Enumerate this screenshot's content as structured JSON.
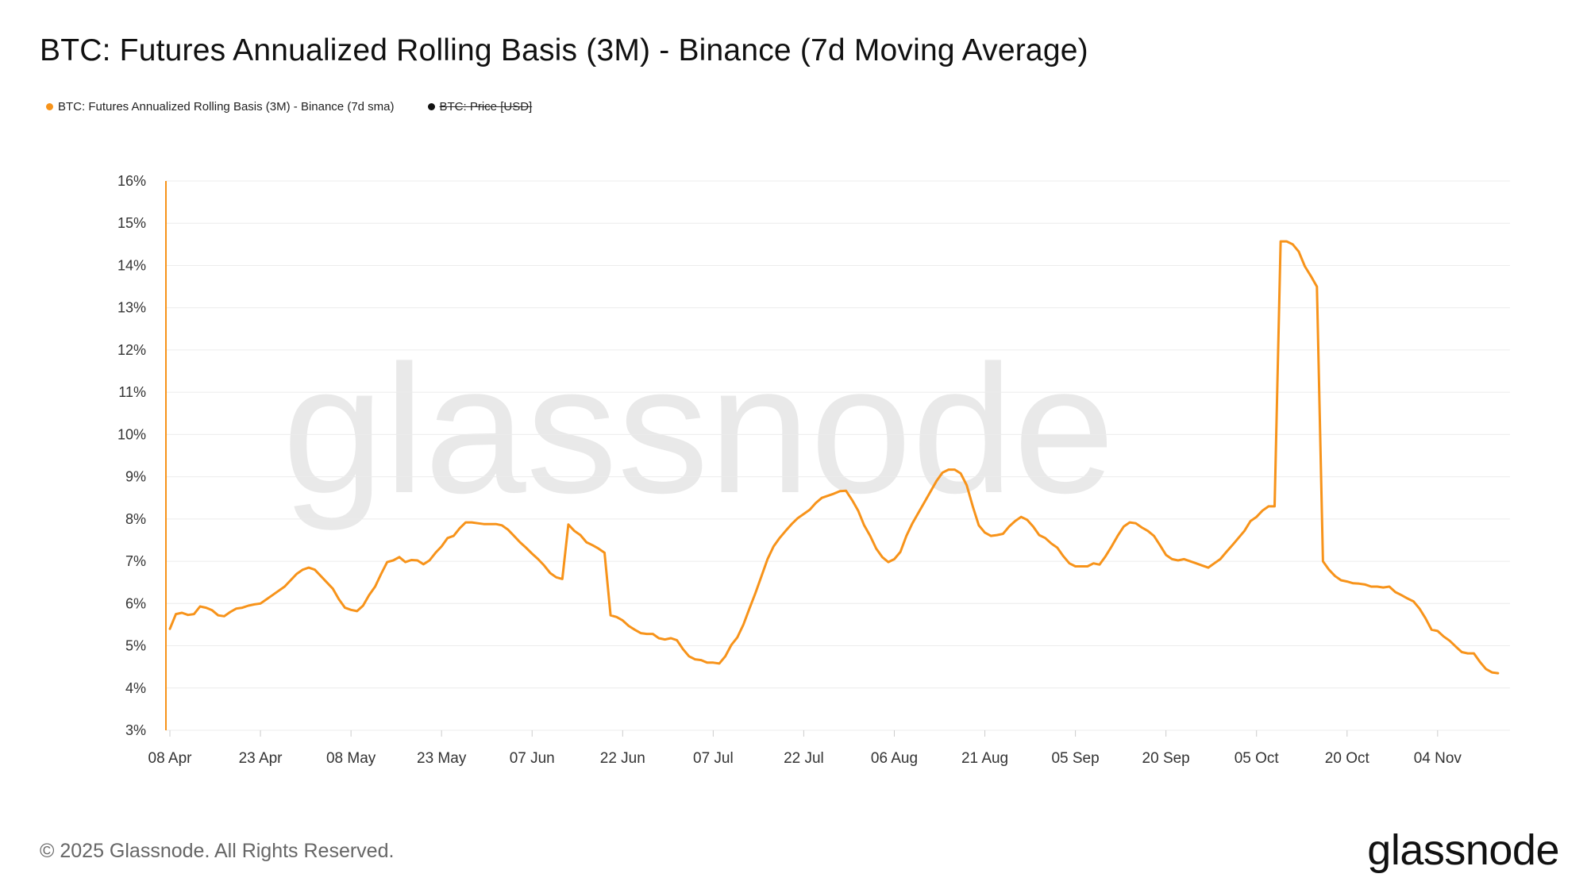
{
  "title": "BTC: Futures Annualized Rolling Basis (3M) - Binance (7d Moving Average)",
  "legend": [
    {
      "label": "BTC: Futures Annualized Rolling Basis (3M) - Binance (7d sma)",
      "color": "#f7931a",
      "enabled": true
    },
    {
      "label": "BTC: Price [USD]",
      "color": "#111111",
      "enabled": false
    }
  ],
  "watermark": "glassnode",
  "footer": {
    "copyright": "© 2025 Glassnode. All Rights Reserved.",
    "logo": "glassnode"
  },
  "colors": {
    "series": "#f7931a",
    "grid": "#ececec",
    "axis_text": "#333333",
    "watermark": "#e8e8e8"
  },
  "chart_data": {
    "type": "line",
    "title": "BTC: Futures Annualized Rolling Basis (3M) - Binance (7d Moving Average)",
    "xlabel": "",
    "ylabel": "",
    "ylim": [
      3,
      16
    ],
    "yticks": [
      3,
      4,
      5,
      6,
      7,
      8,
      9,
      10,
      11,
      12,
      13,
      14,
      15,
      16
    ],
    "ytick_labels": [
      "3%",
      "4%",
      "5%",
      "6%",
      "7%",
      "8%",
      "9%",
      "10%",
      "11%",
      "12%",
      "13%",
      "14%",
      "15%",
      "16%"
    ],
    "xlim": [
      "2025-04-08",
      "2025-11-15"
    ],
    "xticks": [
      "2025-04-08",
      "2025-04-23",
      "2025-05-08",
      "2025-05-23",
      "2025-06-07",
      "2025-06-22",
      "2025-07-07",
      "2025-07-22",
      "2025-08-06",
      "2025-08-21",
      "2025-09-05",
      "2025-09-20",
      "2025-10-05",
      "2025-10-20",
      "2025-11-04"
    ],
    "xtick_labels": [
      "08 Apr",
      "23 Apr",
      "08 May",
      "23 May",
      "07 Jun",
      "22 Jun",
      "07 Jul",
      "22 Jul",
      "06 Aug",
      "21 Aug",
      "05 Sep",
      "20 Sep",
      "05 Oct",
      "20 Oct",
      "04 Nov"
    ],
    "grid": true,
    "legend_position": "top-left",
    "series": [
      {
        "name": "BTC: Futures Annualized Rolling Basis (3M) - Binance (7d sma)",
        "color": "#f7931a",
        "points": [
          [
            "2025-04-08",
            5.4
          ],
          [
            "2025-04-09",
            5.75
          ],
          [
            "2025-04-10",
            5.78
          ],
          [
            "2025-04-11",
            5.73
          ],
          [
            "2025-04-12",
            5.75
          ],
          [
            "2025-04-13",
            5.93
          ],
          [
            "2025-04-14",
            5.9
          ],
          [
            "2025-04-15",
            5.84
          ],
          [
            "2025-04-16",
            5.72
          ],
          [
            "2025-04-17",
            5.7
          ],
          [
            "2025-04-18",
            5.8
          ],
          [
            "2025-04-19",
            5.88
          ],
          [
            "2025-04-20",
            5.9
          ],
          [
            "2025-04-21",
            5.95
          ],
          [
            "2025-04-22",
            5.98
          ],
          [
            "2025-04-23",
            6.0
          ],
          [
            "2025-04-24",
            6.1
          ],
          [
            "2025-04-25",
            6.2
          ],
          [
            "2025-04-26",
            6.3
          ],
          [
            "2025-04-27",
            6.4
          ],
          [
            "2025-04-28",
            6.55
          ],
          [
            "2025-04-29",
            6.7
          ],
          [
            "2025-04-30",
            6.8
          ],
          [
            "2025-05-01",
            6.85
          ],
          [
            "2025-05-02",
            6.8
          ],
          [
            "2025-05-03",
            6.65
          ],
          [
            "2025-05-04",
            6.5
          ],
          [
            "2025-05-05",
            6.35
          ],
          [
            "2025-05-06",
            6.1
          ],
          [
            "2025-05-07",
            5.9
          ],
          [
            "2025-05-08",
            5.85
          ],
          [
            "2025-05-09",
            5.82
          ],
          [
            "2025-05-10",
            5.95
          ],
          [
            "2025-05-11",
            6.2
          ],
          [
            "2025-05-12",
            6.4
          ],
          [
            "2025-05-13",
            6.7
          ],
          [
            "2025-05-14",
            6.98
          ],
          [
            "2025-05-15",
            7.02
          ],
          [
            "2025-05-16",
            7.1
          ],
          [
            "2025-05-17",
            6.98
          ],
          [
            "2025-05-18",
            7.03
          ],
          [
            "2025-05-19",
            7.02
          ],
          [
            "2025-05-20",
            6.93
          ],
          [
            "2025-05-21",
            7.02
          ],
          [
            "2025-05-22",
            7.2
          ],
          [
            "2025-05-23",
            7.35
          ],
          [
            "2025-05-24",
            7.55
          ],
          [
            "2025-05-25",
            7.6
          ],
          [
            "2025-05-26",
            7.78
          ],
          [
            "2025-05-27",
            7.92
          ],
          [
            "2025-05-28",
            7.92
          ],
          [
            "2025-05-29",
            7.9
          ],
          [
            "2025-05-30",
            7.88
          ],
          [
            "2025-05-31",
            7.88
          ],
          [
            "2025-06-01",
            7.88
          ],
          [
            "2025-06-02",
            7.85
          ],
          [
            "2025-06-03",
            7.75
          ],
          [
            "2025-06-04",
            7.6
          ],
          [
            "2025-06-05",
            7.45
          ],
          [
            "2025-06-06",
            7.32
          ],
          [
            "2025-06-07",
            7.18
          ],
          [
            "2025-06-08",
            7.05
          ],
          [
            "2025-06-09",
            6.9
          ],
          [
            "2025-06-10",
            6.72
          ],
          [
            "2025-06-11",
            6.62
          ],
          [
            "2025-06-12",
            6.58
          ],
          [
            "2025-06-13",
            7.87
          ],
          [
            "2025-06-14",
            7.72
          ],
          [
            "2025-06-15",
            7.62
          ],
          [
            "2025-06-16",
            7.45
          ],
          [
            "2025-06-17",
            7.38
          ],
          [
            "2025-06-18",
            7.3
          ],
          [
            "2025-06-19",
            7.2
          ],
          [
            "2025-06-20",
            5.72
          ],
          [
            "2025-06-21",
            5.68
          ],
          [
            "2025-06-22",
            5.6
          ],
          [
            "2025-06-23",
            5.47
          ],
          [
            "2025-06-24",
            5.38
          ],
          [
            "2025-06-25",
            5.3
          ],
          [
            "2025-06-26",
            5.28
          ],
          [
            "2025-06-27",
            5.28
          ],
          [
            "2025-06-28",
            5.18
          ],
          [
            "2025-06-29",
            5.15
          ],
          [
            "2025-06-30",
            5.18
          ],
          [
            "2025-07-01",
            5.13
          ],
          [
            "2025-07-02",
            4.92
          ],
          [
            "2025-07-03",
            4.75
          ],
          [
            "2025-07-04",
            4.68
          ],
          [
            "2025-07-05",
            4.66
          ],
          [
            "2025-07-06",
            4.6
          ],
          [
            "2025-07-07",
            4.6
          ],
          [
            "2025-07-08",
            4.58
          ],
          [
            "2025-07-09",
            4.75
          ],
          [
            "2025-07-10",
            5.02
          ],
          [
            "2025-07-11",
            5.2
          ],
          [
            "2025-07-12",
            5.5
          ],
          [
            "2025-07-13",
            5.88
          ],
          [
            "2025-07-14",
            6.25
          ],
          [
            "2025-07-15",
            6.65
          ],
          [
            "2025-07-16",
            7.05
          ],
          [
            "2025-07-17",
            7.35
          ],
          [
            "2025-07-18",
            7.55
          ],
          [
            "2025-07-19",
            7.72
          ],
          [
            "2025-07-20",
            7.88
          ],
          [
            "2025-07-21",
            8.02
          ],
          [
            "2025-07-22",
            8.12
          ],
          [
            "2025-07-23",
            8.22
          ],
          [
            "2025-07-24",
            8.38
          ],
          [
            "2025-07-25",
            8.5
          ],
          [
            "2025-07-26",
            8.55
          ],
          [
            "2025-07-27",
            8.6
          ],
          [
            "2025-07-28",
            8.66
          ],
          [
            "2025-07-29",
            8.67
          ],
          [
            "2025-07-30",
            8.45
          ],
          [
            "2025-07-31",
            8.2
          ],
          [
            "2025-08-01",
            7.85
          ],
          [
            "2025-08-02",
            7.6
          ],
          [
            "2025-08-03",
            7.3
          ],
          [
            "2025-08-04",
            7.1
          ],
          [
            "2025-08-05",
            6.98
          ],
          [
            "2025-08-06",
            7.05
          ],
          [
            "2025-08-07",
            7.22
          ],
          [
            "2025-08-08",
            7.6
          ],
          [
            "2025-08-09",
            7.9
          ],
          [
            "2025-08-10",
            8.15
          ],
          [
            "2025-08-11",
            8.4
          ],
          [
            "2025-08-12",
            8.65
          ],
          [
            "2025-08-13",
            8.9
          ],
          [
            "2025-08-14",
            9.1
          ],
          [
            "2025-08-15",
            9.17
          ],
          [
            "2025-08-16",
            9.17
          ],
          [
            "2025-08-17",
            9.08
          ],
          [
            "2025-08-18",
            8.8
          ],
          [
            "2025-08-19",
            8.3
          ],
          [
            "2025-08-20",
            7.85
          ],
          [
            "2025-08-21",
            7.68
          ],
          [
            "2025-08-22",
            7.6
          ],
          [
            "2025-08-23",
            7.62
          ],
          [
            "2025-08-24",
            7.65
          ],
          [
            "2025-08-25",
            7.82
          ],
          [
            "2025-08-26",
            7.95
          ],
          [
            "2025-08-27",
            8.05
          ],
          [
            "2025-08-28",
            7.98
          ],
          [
            "2025-08-29",
            7.82
          ],
          [
            "2025-08-30",
            7.62
          ],
          [
            "2025-08-31",
            7.55
          ],
          [
            "2025-09-01",
            7.42
          ],
          [
            "2025-09-02",
            7.32
          ],
          [
            "2025-09-03",
            7.12
          ],
          [
            "2025-09-04",
            6.95
          ],
          [
            "2025-09-05",
            6.88
          ],
          [
            "2025-09-06",
            6.88
          ],
          [
            "2025-09-07",
            6.88
          ],
          [
            "2025-09-08",
            6.95
          ],
          [
            "2025-09-09",
            6.92
          ],
          [
            "2025-09-10",
            7.12
          ],
          [
            "2025-09-11",
            7.35
          ],
          [
            "2025-09-12",
            7.6
          ],
          [
            "2025-09-13",
            7.82
          ],
          [
            "2025-09-14",
            7.92
          ],
          [
            "2025-09-15",
            7.9
          ],
          [
            "2025-09-16",
            7.8
          ],
          [
            "2025-09-17",
            7.72
          ],
          [
            "2025-09-18",
            7.6
          ],
          [
            "2025-09-19",
            7.38
          ],
          [
            "2025-09-20",
            7.15
          ],
          [
            "2025-09-21",
            7.05
          ],
          [
            "2025-09-22",
            7.02
          ],
          [
            "2025-09-23",
            7.05
          ],
          [
            "2025-09-24",
            7.0
          ],
          [
            "2025-09-25",
            6.95
          ],
          [
            "2025-09-26",
            6.9
          ],
          [
            "2025-09-27",
            6.85
          ],
          [
            "2025-09-28",
            6.95
          ],
          [
            "2025-09-29",
            7.05
          ],
          [
            "2025-09-30",
            7.22
          ],
          [
            "2025-10-01",
            7.38
          ],
          [
            "2025-10-02",
            7.55
          ],
          [
            "2025-10-03",
            7.72
          ],
          [
            "2025-10-04",
            7.95
          ],
          [
            "2025-10-05",
            8.05
          ],
          [
            "2025-10-06",
            8.2
          ],
          [
            "2025-10-07",
            8.3
          ],
          [
            "2025-10-08",
            8.3
          ],
          [
            "2025-10-09",
            14.57
          ],
          [
            "2025-10-10",
            14.57
          ],
          [
            "2025-10-11",
            14.5
          ],
          [
            "2025-10-12",
            14.33
          ],
          [
            "2025-10-13",
            13.98
          ],
          [
            "2025-10-14",
            13.75
          ],
          [
            "2025-10-15",
            13.5
          ],
          [
            "2025-10-16",
            7.0
          ],
          [
            "2025-10-17",
            6.8
          ],
          [
            "2025-10-18",
            6.65
          ],
          [
            "2025-10-19",
            6.55
          ],
          [
            "2025-10-20",
            6.52
          ],
          [
            "2025-10-21",
            6.48
          ],
          [
            "2025-10-22",
            6.47
          ],
          [
            "2025-10-23",
            6.45
          ],
          [
            "2025-10-24",
            6.4
          ],
          [
            "2025-10-25",
            6.4
          ],
          [
            "2025-10-26",
            6.38
          ],
          [
            "2025-10-27",
            6.4
          ],
          [
            "2025-10-28",
            6.27
          ],
          [
            "2025-10-29",
            6.2
          ],
          [
            "2025-10-30",
            6.12
          ],
          [
            "2025-10-31",
            6.05
          ],
          [
            "2025-11-01",
            5.88
          ],
          [
            "2025-11-02",
            5.65
          ],
          [
            "2025-11-03",
            5.38
          ],
          [
            "2025-11-04",
            5.35
          ],
          [
            "2025-11-05",
            5.22
          ],
          [
            "2025-11-06",
            5.12
          ],
          [
            "2025-11-07",
            4.98
          ],
          [
            "2025-11-08",
            4.85
          ],
          [
            "2025-11-09",
            4.82
          ],
          [
            "2025-11-10",
            4.82
          ],
          [
            "2025-11-11",
            4.62
          ],
          [
            "2025-11-12",
            4.45
          ],
          [
            "2025-11-13",
            4.37
          ],
          [
            "2025-11-14",
            4.35
          ]
        ]
      }
    ]
  }
}
